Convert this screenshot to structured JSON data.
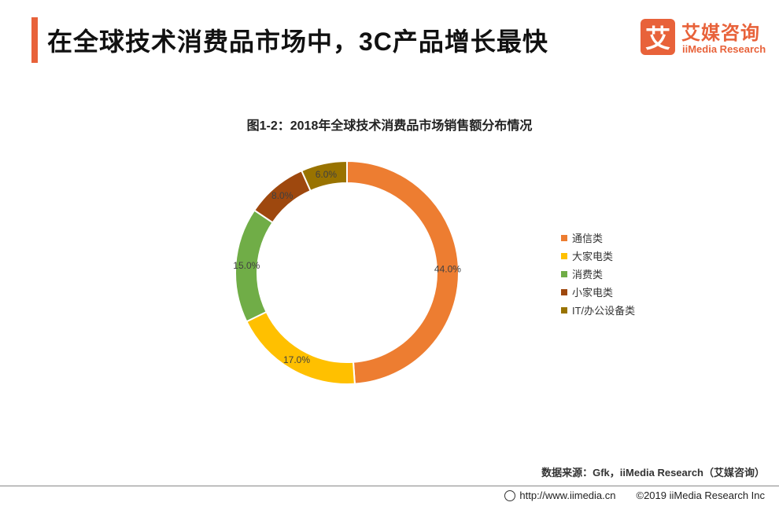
{
  "header": {
    "title": "在全球技术消费品市场中，3C产品增长最快"
  },
  "logo": {
    "mark": "艾",
    "cn": "艾媒咨询",
    "en": "iiMedia Research"
  },
  "chart_data": {
    "type": "pie",
    "variant": "donut",
    "title": "图1-2：2018年全球技术消费品市场销售额分布情况",
    "categories": [
      "通信类",
      "大家电类",
      "消费类",
      "小家电类",
      "IT/办公设备类"
    ],
    "values": [
      44.0,
      17.0,
      15.0,
      8.0,
      6.0
    ],
    "labels": [
      "44.0%",
      "17.0%",
      "15.0%",
      "8.0%",
      "6.0%"
    ],
    "colors": [
      "#ed7d31",
      "#ffc000",
      "#70ad47",
      "#9e480e",
      "#997300"
    ],
    "legend_position": "right"
  },
  "source": "数据来源：Gfk，iiMedia Research（艾媒咨询）",
  "footer": {
    "url": "http://www.iimedia.cn",
    "copyright": "©2019  iiMedia Research  Inc"
  }
}
